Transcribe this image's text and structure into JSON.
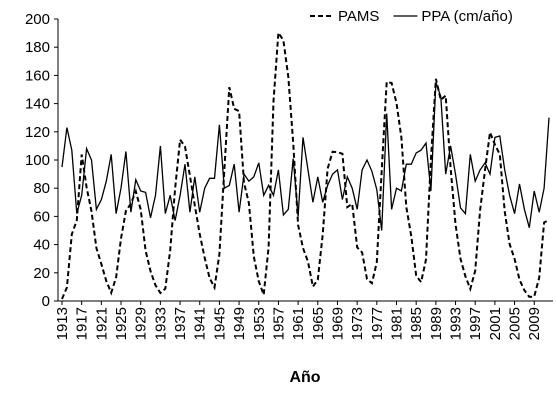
{
  "chart_data": {
    "type": "line",
    "x_label": "Año",
    "categories": [
      "1913",
      null,
      null,
      null,
      "1917",
      null,
      null,
      null,
      "1921",
      null,
      null,
      null,
      "1925",
      null,
      null,
      null,
      "1929",
      null,
      null,
      null,
      "1933",
      null,
      null,
      null,
      "1937",
      null,
      null,
      null,
      "1941",
      null,
      null,
      null,
      "1945",
      null,
      null,
      null,
      "1949",
      null,
      null,
      null,
      "1953",
      null,
      null,
      null,
      "1957",
      null,
      null,
      null,
      "1961",
      null,
      null,
      null,
      "1965",
      null,
      null,
      null,
      "1969",
      null,
      null,
      null,
      "1973",
      null,
      null,
      null,
      "1977",
      null,
      null,
      null,
      "1981",
      null,
      null,
      null,
      "1985",
      null,
      null,
      null,
      "1989",
      null,
      null,
      null,
      "1993",
      null,
      null,
      null,
      "1997",
      null,
      null,
      null,
      "2001",
      null,
      null,
      null,
      "2005",
      null,
      null,
      null,
      "2009",
      null,
      null,
      null
    ],
    "series": [
      {
        "name": "PAMS",
        "color": "#000000",
        "dashed": true,
        "values": [
          1.4,
          9.6,
          47.4,
          57.1,
          103.9,
          80.6,
          63.6,
          37.6,
          26.1,
          14.2,
          5.8,
          16.7,
          44.3,
          63.9,
          69.0,
          77.8,
          64.9,
          35.7,
          21.2,
          11.1,
          5.7,
          8.7,
          36.1,
          79.7,
          114.4,
          109.6,
          88.8,
          67.8,
          47.5,
          30.6,
          16.3,
          9.6,
          33.2,
          92.6,
          151.6,
          136.3,
          134.7,
          83.9,
          69.4,
          31.5,
          13.9,
          4.4,
          38.0,
          141.7,
          190.2,
          184.8,
          159.0,
          112.3,
          53.9,
          37.6,
          27.9,
          10.2,
          15.1,
          47.0,
          93.8,
          105.9,
          105.5,
          104.5,
          66.6,
          68.9,
          38.0,
          34.5,
          15.5,
          12.6,
          27.5,
          92.5,
          155.4,
          154.6,
          140.4,
          115.9,
          66.6,
          45.9,
          17.9,
          13.4,
          29.4,
          100.2,
          157.6,
          142.6,
          145.7,
          94.3,
          54.6,
          29.9,
          17.5,
          8.6,
          21.5,
          64.3,
          93.3,
          119.6,
          111.0,
          104.0,
          63.7,
          40.4,
          29.8,
          15.2,
          7.5,
          2.9,
          3.1,
          16.5,
          55.7,
          57.6
        ]
      },
      {
        "name": "PPA (cm/año)",
        "color": "#000000",
        "dashed": false,
        "values": [
          95,
          123,
          107,
          62,
          75,
          108,
          100,
          65,
          72,
          85,
          104,
          62,
          80,
          106,
          63,
          86,
          78,
          77,
          59,
          75,
          110,
          62,
          75,
          57,
          75,
          97,
          63,
          88,
          63,
          80,
          87,
          87,
          125,
          80,
          82,
          97,
          63,
          90,
          85,
          88,
          98,
          75,
          82,
          75,
          93,
          61,
          65,
          101,
          60,
          116,
          93,
          70,
          88,
          70,
          82,
          90,
          93,
          72,
          88,
          80,
          65,
          93,
          100,
          92,
          79,
          50,
          133,
          65,
          80,
          78,
          97,
          97,
          105,
          107,
          112,
          78,
          155,
          145,
          90,
          110,
          90,
          66,
          62,
          104,
          85,
          93,
          98,
          90,
          116,
          117,
          93,
          75,
          62,
          83,
          65,
          52,
          78,
          63,
          80,
          130
        ]
      }
    ],
    "ylim": [
      0,
      200
    ],
    "yticks": [
      0,
      20,
      40,
      60,
      80,
      100,
      120,
      140,
      160,
      180,
      200
    ],
    "grid": false,
    "legend": "top-right"
  }
}
